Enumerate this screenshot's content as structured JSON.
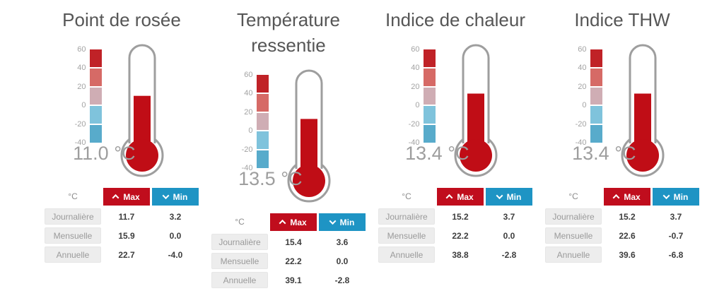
{
  "scale": {
    "min": -40,
    "max": 60,
    "tick_labels": [
      "60",
      "40",
      "20",
      "0",
      "-20",
      "-40"
    ],
    "block_colors": [
      "#c02227",
      "#d66a66",
      "#cfadb4",
      "#7fc3dc",
      "#58abcb"
    ]
  },
  "colors": {
    "max_button": "#c00d1d",
    "min_button": "#1e94c4",
    "thermometer_fill": "#c00d16",
    "thermometer_outline": "#9e9e9e"
  },
  "table_header": {
    "unit": "°C",
    "max_label": "Max",
    "min_label": "Min"
  },
  "widgets": [
    {
      "title": "Point de rosée",
      "value": 11.0,
      "value_label": "11.0 °C",
      "rows": [
        {
          "label": "Journalière",
          "max": "11.7",
          "min": "3.2"
        },
        {
          "label": "Mensuelle",
          "max": "15.9",
          "min": "0.0"
        },
        {
          "label": "Annuelle",
          "max": "22.7",
          "min": "-4.0"
        }
      ]
    },
    {
      "title": "Température ressentie",
      "value": 13.5,
      "value_label": "13.5 °C",
      "rows": [
        {
          "label": "Journalière",
          "max": "15.4",
          "min": "3.6"
        },
        {
          "label": "Mensuelle",
          "max": "22.2",
          "min": "0.0"
        },
        {
          "label": "Annuelle",
          "max": "39.1",
          "min": "-2.8"
        }
      ]
    },
    {
      "title": "Indice de chaleur",
      "value": 13.4,
      "value_label": "13.4 °C",
      "rows": [
        {
          "label": "Journalière",
          "max": "15.2",
          "min": "3.7"
        },
        {
          "label": "Mensuelle",
          "max": "22.2",
          "min": "0.0"
        },
        {
          "label": "Annuelle",
          "max": "38.8",
          "min": "-2.8"
        }
      ]
    },
    {
      "title": "Indice THW",
      "value": 13.4,
      "value_label": "13.4 °C",
      "rows": [
        {
          "label": "Journalière",
          "max": "15.2",
          "min": "3.7"
        },
        {
          "label": "Mensuelle",
          "max": "22.6",
          "min": "-0.7"
        },
        {
          "label": "Annuelle",
          "max": "39.6",
          "min": "-6.8"
        }
      ]
    }
  ],
  "chart_data": [
    {
      "type": "table",
      "title": "Point de rosée",
      "gauge": {
        "kind": "thermometer",
        "current_value_c": 11.0,
        "range_c": [
          -40,
          60
        ]
      },
      "columns": [
        "°C",
        "Max",
        "Min"
      ],
      "rows": [
        [
          "Journalière",
          11.7,
          3.2
        ],
        [
          "Mensuelle",
          15.9,
          0.0
        ],
        [
          "Annuelle",
          22.7,
          -4.0
        ]
      ]
    },
    {
      "type": "table",
      "title": "Température ressentie",
      "gauge": {
        "kind": "thermometer",
        "current_value_c": 13.5,
        "range_c": [
          -40,
          60
        ]
      },
      "columns": [
        "°C",
        "Max",
        "Min"
      ],
      "rows": [
        [
          "Journalière",
          15.4,
          3.6
        ],
        [
          "Mensuelle",
          22.2,
          0.0
        ],
        [
          "Annuelle",
          39.1,
          -2.8
        ]
      ]
    },
    {
      "type": "table",
      "title": "Indice de chaleur",
      "gauge": {
        "kind": "thermometer",
        "current_value_c": 13.4,
        "range_c": [
          -40,
          60
        ]
      },
      "columns": [
        "°C",
        "Max",
        "Min"
      ],
      "rows": [
        [
          "Journalière",
          15.2,
          3.7
        ],
        [
          "Mensuelle",
          22.2,
          0.0
        ],
        [
          "Annuelle",
          38.8,
          -2.8
        ]
      ]
    },
    {
      "type": "table",
      "title": "Indice THW",
      "gauge": {
        "kind": "thermometer",
        "current_value_c": 13.4,
        "range_c": [
          -40,
          60
        ]
      },
      "columns": [
        "°C",
        "Max",
        "Min"
      ],
      "rows": [
        [
          "Journalière",
          15.2,
          3.7
        ],
        [
          "Mensuelle",
          22.6,
          -0.7
        ],
        [
          "Annuelle",
          39.6,
          -6.8
        ]
      ]
    }
  ]
}
